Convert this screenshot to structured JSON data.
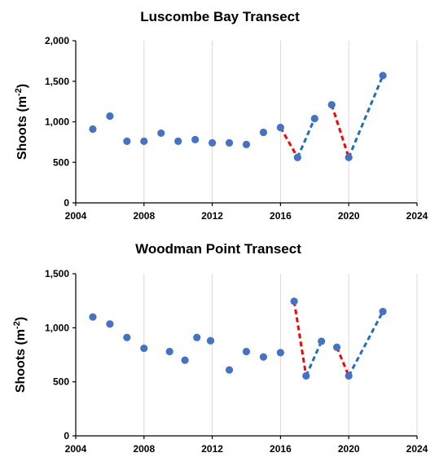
{
  "chart_data": [
    {
      "type": "scatter",
      "title": "Luscombe Bay Transect",
      "ylabel": "Shoots (m",
      "ylabel_sup": "-2",
      "ylabel_close": ")",
      "xlim": [
        2004,
        2024
      ],
      "ylim": [
        0,
        2000
      ],
      "x_ticks": [
        2004,
        2008,
        2012,
        2016,
        2020,
        2024
      ],
      "y_ticks": [
        0,
        500,
        1000,
        1500,
        2000
      ],
      "y_tick_labels": [
        "0",
        "500",
        "1,000",
        "1,500",
        "2,000"
      ],
      "grid": "vertical",
      "marker_color": "#4472c4",
      "points": [
        {
          "x": 2005,
          "y": 910
        },
        {
          "x": 2006,
          "y": 1070
        },
        {
          "x": 2007,
          "y": 760
        },
        {
          "x": 2008,
          "y": 760
        },
        {
          "x": 2009,
          "y": 860
        },
        {
          "x": 2010,
          "y": 760
        },
        {
          "x": 2011,
          "y": 780
        },
        {
          "x": 2012,
          "y": 740
        },
        {
          "x": 2013,
          "y": 740
        },
        {
          "x": 2014,
          "y": 720
        },
        {
          "x": 2015,
          "y": 870
        },
        {
          "x": 2016,
          "y": 930
        },
        {
          "x": 2017,
          "y": 560
        },
        {
          "x": 2018,
          "y": 1040
        },
        {
          "x": 2019,
          "y": 1210
        },
        {
          "x": 2020,
          "y": 560
        },
        {
          "x": 2022,
          "y": 1570
        }
      ],
      "segments": [
        {
          "from": [
            2016,
            930
          ],
          "to": [
            2017,
            560
          ],
          "color": "#ff0000"
        },
        {
          "from": [
            2017,
            560
          ],
          "to": [
            2018,
            1040
          ],
          "color": "#1f6fbf"
        },
        {
          "from": [
            2019,
            1210
          ],
          "to": [
            2020,
            560
          ],
          "color": "#ff0000"
        },
        {
          "from": [
            2020,
            560
          ],
          "to": [
            2022,
            1570
          ],
          "color": "#1f6fbf"
        }
      ]
    },
    {
      "type": "scatter",
      "title": "Woodman Point Transect",
      "ylabel": "Shoots (m",
      "ylabel_sup": "-2",
      "ylabel_close": ")",
      "xlim": [
        2004,
        2024
      ],
      "ylim": [
        0,
        1500
      ],
      "x_ticks": [
        2004,
        2008,
        2012,
        2016,
        2020,
        2024
      ],
      "y_ticks": [
        0,
        500,
        1000,
        1500
      ],
      "y_tick_labels": [
        "0",
        "500",
        "1,000",
        "1,500"
      ],
      "grid": "vertical",
      "marker_color": "#4472c4",
      "points": [
        {
          "x": 2005,
          "y": 1100
        },
        {
          "x": 2006,
          "y": 1035
        },
        {
          "x": 2007,
          "y": 910
        },
        {
          "x": 2008,
          "y": 810
        },
        {
          "x": 2009.5,
          "y": 780
        },
        {
          "x": 2010.4,
          "y": 700
        },
        {
          "x": 2011.1,
          "y": 910
        },
        {
          "x": 2011.9,
          "y": 880
        },
        {
          "x": 2013,
          "y": 610
        },
        {
          "x": 2014,
          "y": 780
        },
        {
          "x": 2015,
          "y": 730
        },
        {
          "x": 2016,
          "y": 770
        },
        {
          "x": 2016.8,
          "y": 1245
        },
        {
          "x": 2017.5,
          "y": 555
        },
        {
          "x": 2018.4,
          "y": 875
        },
        {
          "x": 2019.3,
          "y": 820
        },
        {
          "x": 2020,
          "y": 555
        },
        {
          "x": 2022,
          "y": 1150
        }
      ],
      "segments": [
        {
          "from": [
            2016.8,
            1245
          ],
          "to": [
            2017.5,
            555
          ],
          "color": "#ff0000"
        },
        {
          "from": [
            2017.5,
            555
          ],
          "to": [
            2018.4,
            875
          ],
          "color": "#1f6fbf"
        },
        {
          "from": [
            2019.3,
            820
          ],
          "to": [
            2020,
            555
          ],
          "color": "#ff0000"
        },
        {
          "from": [
            2020,
            555
          ],
          "to": [
            2022,
            1150
          ],
          "color": "#1f6fbf"
        }
      ]
    }
  ]
}
